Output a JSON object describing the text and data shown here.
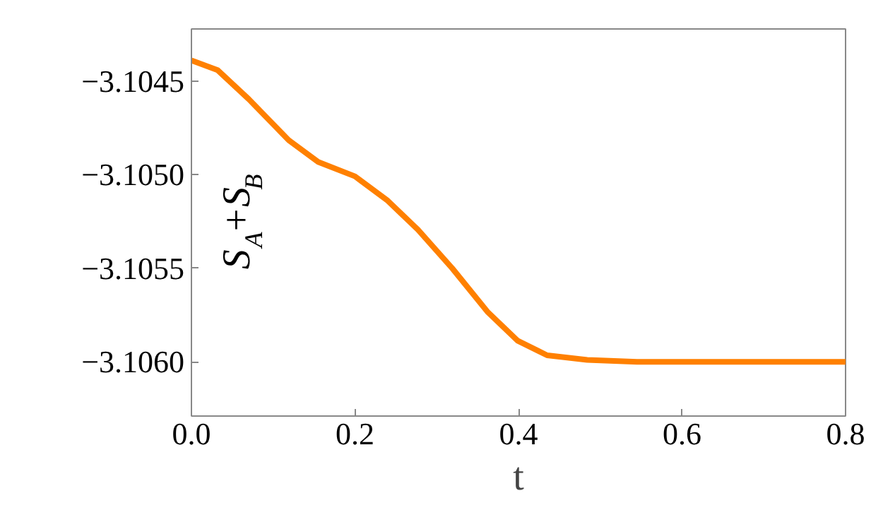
{
  "chart_data": {
    "type": "line",
    "xlabel": "t",
    "ylabel": "S$_{A}$+S$_{B}$",
    "xlim": [
      0,
      0.8
    ],
    "ylim": [
      -3.10629,
      -3.10422
    ],
    "xticks": [
      {
        "value": 0,
        "label": "0.0"
      },
      0.2,
      0.4,
      0.6,
      0.8
    ],
    "yticks": [
      -3.1045,
      {
        "value": -3.105,
        "label": "−3.1050"
      },
      -3.1055,
      {
        "value": -3.106,
        "label": "−3.1060"
      }
    ],
    "grid": false,
    "marker": "none",
    "line_style": "solid",
    "series": [
      {
        "color": "#ff8000",
        "x": [
          0,
          0.032,
          0.07,
          0.119,
          0.155,
          0.2,
          0.24,
          0.277,
          0.319,
          0.362,
          0.399,
          0.435,
          0.484,
          0.545,
          0.6,
          0.7,
          0.8
        ],
        "values": [
          -3.104388,
          -3.10444,
          -3.104595,
          -3.104815,
          -3.104931,
          -3.105008,
          -3.105138,
          -3.105293,
          -3.1055,
          -3.105732,
          -3.105887,
          -3.105965,
          -3.10599,
          -3.106,
          -3.106,
          -3.106,
          -3.106
        ]
      }
    ]
  }
}
